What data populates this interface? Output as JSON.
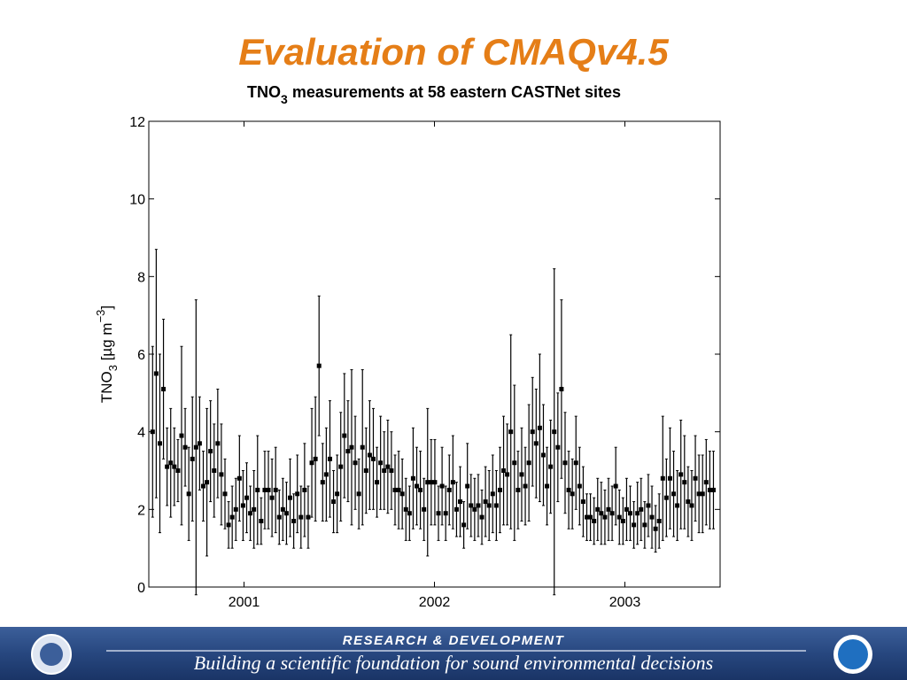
{
  "chart_data": {
    "type": "errorbar",
    "title": "Evaluation of CMAQv4.5",
    "subtitle": {
      "main": "TNO",
      "sub": "3",
      "rest": " measurements at 58 eastern CASTNet sites"
    },
    "ylabel": {
      "main": "TNO",
      "sub": "3",
      "unit": " [µg m",
      "sup": "−3",
      "close": "]"
    },
    "color": "#000000",
    "xlim": [
      2000.5,
      2003.5
    ],
    "xticks": [
      2001,
      2002,
      2003
    ],
    "ylim": [
      0,
      12
    ],
    "yticks": [
      0,
      2,
      4,
      6,
      8,
      10,
      12
    ],
    "grid": false,
    "x": [
      2000.52,
      2000.539,
      2000.558,
      2000.577,
      2000.596,
      2000.615,
      2000.634,
      2000.653,
      2000.672,
      2000.691,
      2000.71,
      2000.729,
      2000.748,
      2000.767,
      2000.786,
      2000.805,
      2000.824,
      2000.843,
      2000.862,
      2000.881,
      2000.9,
      2000.919,
      2000.938,
      2000.957,
      2000.976,
      2000.995,
      2001.014,
      2001.033,
      2001.052,
      2001.071,
      2001.09,
      2001.109,
      2001.128,
      2001.147,
      2001.166,
      2001.185,
      2001.204,
      2001.223,
      2001.242,
      2001.261,
      2001.28,
      2001.299,
      2001.318,
      2001.337,
      2001.356,
      2001.375,
      2001.394,
      2001.413,
      2001.432,
      2001.451,
      2001.47,
      2001.489,
      2001.508,
      2001.527,
      2001.546,
      2001.565,
      2001.584,
      2001.603,
      2001.622,
      2001.641,
      2001.66,
      2001.679,
      2001.698,
      2001.717,
      2001.736,
      2001.755,
      2001.774,
      2001.793,
      2001.812,
      2001.831,
      2001.85,
      2001.869,
      2001.888,
      2001.907,
      2001.926,
      2001.945,
      2001.964,
      2001.983,
      2002.002,
      2002.021,
      2002.04,
      2002.059,
      2002.078,
      2002.097,
      2002.116,
      2002.135,
      2002.154,
      2002.173,
      2002.192,
      2002.211,
      2002.23,
      2002.249,
      2002.268,
      2002.287,
      2002.306,
      2002.325,
      2002.344,
      2002.363,
      2002.382,
      2002.401,
      2002.42,
      2002.439,
      2002.458,
      2002.477,
      2002.496,
      2002.515,
      2002.534,
      2002.553,
      2002.572,
      2002.591,
      2002.61,
      2002.629,
      2002.648,
      2002.667,
      2002.686,
      2002.705,
      2002.724,
      2002.743,
      2002.762,
      2002.781,
      2002.8,
      2002.819,
      2002.838,
      2002.857,
      2002.876,
      2002.895,
      2002.914,
      2002.933,
      2002.952,
      2002.971,
      2002.99,
      2003.009,
      2003.028,
      2003.047,
      2003.066,
      2003.085,
      2003.104,
      2003.123,
      2003.142,
      2003.161,
      2003.18,
      2003.199,
      2003.218,
      2003.237,
      2003.256,
      2003.275,
      2003.294,
      2003.313,
      2003.332,
      2003.351,
      2003.37,
      2003.389,
      2003.408,
      2003.427,
      2003.446,
      2003.465
    ],
    "values": [
      4.0,
      5.5,
      3.7,
      5.1,
      3.1,
      3.2,
      3.1,
      3.0,
      3.9,
      3.6,
      2.4,
      3.3,
      3.6,
      3.7,
      2.6,
      2.7,
      3.5,
      3.0,
      3.7,
      2.9,
      2.4,
      1.6,
      1.8,
      2.0,
      2.8,
      2.1,
      2.3,
      1.9,
      2.0,
      2.5,
      1.7,
      2.5,
      2.5,
      2.3,
      2.5,
      1.8,
      2.0,
      1.9,
      2.3,
      1.7,
      2.4,
      1.8,
      2.5,
      1.8,
      3.2,
      3.3,
      5.7,
      2.7,
      2.9,
      3.3,
      2.2,
      2.4,
      3.1,
      3.9,
      3.5,
      3.6,
      3.2,
      2.4,
      3.6,
      3.0,
      3.4,
      3.3,
      2.7,
      3.2,
      3.0,
      3.1,
      3.0,
      2.5,
      2.5,
      2.4,
      2.0,
      1.9,
      2.8,
      2.6,
      2.5,
      2.0,
      2.7,
      2.7,
      2.7,
      1.9,
      2.6,
      1.9,
      2.5,
      2.7,
      2.0,
      2.2,
      1.6,
      2.6,
      2.1,
      2.0,
      2.1,
      1.8,
      2.2,
      2.1,
      2.4,
      2.1,
      2.5,
      3.0,
      2.9,
      4.0,
      3.2,
      2.5,
      2.9,
      2.6,
      3.2,
      4.0,
      3.7,
      4.1,
      3.4,
      2.6,
      3.1,
      4.0,
      3.6,
      5.1,
      3.2,
      2.5,
      2.4,
      3.2,
      2.6,
      2.2,
      1.8,
      1.8,
      1.7,
      2.0,
      1.9,
      1.8,
      2.0,
      1.9,
      2.6,
      1.8,
      1.7,
      2.0,
      1.9,
      1.6,
      1.9,
      2.0,
      1.6,
      2.1,
      1.8,
      1.5,
      1.7,
      2.8,
      2.3,
      2.8,
      2.4,
      2.1,
      2.9,
      2.7,
      2.2,
      2.1,
      2.8,
      2.4,
      2.4,
      2.7,
      2.5,
      2.5
    ],
    "errors": [
      2.2,
      3.2,
      2.3,
      1.8,
      1.0,
      1.4,
      1.0,
      0.8,
      2.3,
      1.0,
      1.2,
      1.6,
      3.8,
      1.2,
      0.9,
      1.9,
      1.3,
      1.2,
      1.4,
      1.3,
      0.9,
      0.6,
      0.8,
      0.8,
      1.1,
      0.9,
      0.9,
      0.7,
      1.0,
      1.4,
      0.6,
      1.0,
      1.0,
      1.0,
      1.1,
      0.7,
      0.8,
      0.8,
      1.0,
      0.7,
      1.0,
      0.8,
      1.2,
      0.8,
      1.4,
      1.6,
      1.8,
      1.0,
      1.2,
      1.5,
      0.8,
      1.0,
      1.4,
      1.6,
      1.3,
      2.0,
      1.2,
      0.9,
      2.0,
      1.1,
      1.4,
      1.3,
      0.9,
      1.2,
      1.0,
      1.2,
      1.0,
      0.9,
      1.0,
      0.9,
      0.8,
      0.7,
      1.3,
      1.0,
      1.0,
      0.8,
      1.9,
      1.1,
      1.1,
      0.7,
      1.0,
      0.7,
      0.9,
      1.2,
      0.7,
      0.9,
      0.6,
      1.1,
      0.8,
      0.8,
      0.8,
      0.7,
      0.9,
      0.9,
      1.0,
      0.9,
      1.1,
      1.4,
      1.3,
      2.5,
      2.0,
      1.0,
      1.2,
      1.0,
      1.5,
      1.4,
      1.4,
      1.9,
      1.3,
      1.0,
      1.2,
      4.2,
      1.4,
      2.3,
      1.3,
      1.0,
      0.9,
      1.2,
      1.0,
      0.9,
      0.6,
      0.6,
      0.6,
      0.8,
      0.8,
      0.7,
      0.8,
      0.7,
      1.0,
      0.7,
      0.6,
      0.8,
      0.7,
      0.6,
      0.8,
      0.8,
      0.6,
      0.8,
      0.8,
      0.6,
      0.7,
      1.6,
      1.0,
      1.3,
      1.1,
      0.9,
      1.4,
      1.2,
      0.9,
      0.9,
      1.1,
      1.0,
      1.0,
      1.1,
      1.0,
      1.0
    ]
  },
  "footer": {
    "heading": "RESEARCH & DEVELOPMENT",
    "tagline": "Building a scientific foundation for sound environmental decisions"
  }
}
